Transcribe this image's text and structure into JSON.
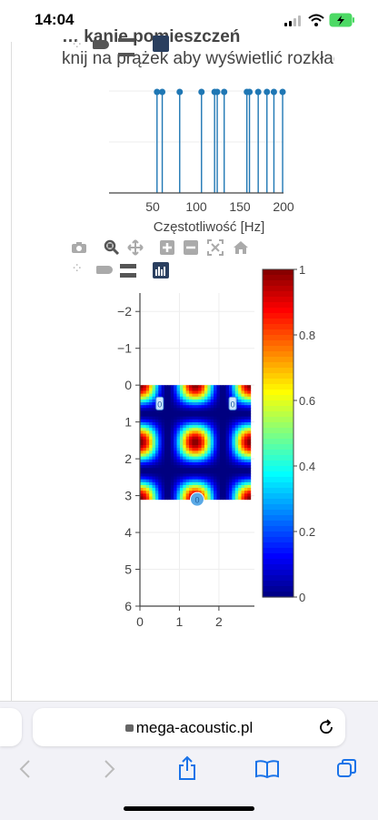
{
  "status_bar": {
    "time": "14:04"
  },
  "page": {
    "heading_partial": "… kanie pomieszczeń",
    "instruction": "knij na prążek aby wyświetlić rozkład",
    "freq_chart": {
      "xlabel": "Częstotliwość [Hz]"
    },
    "colors": {
      "stem": "#1f77b4",
      "dark_icon": "#2a3f5f"
    }
  },
  "chart_data": [
    {
      "type": "scatter",
      "mode": "stem",
      "title": "",
      "xlabel": "Częstotliwość [Hz]",
      "ylabel": "",
      "xlim": [
        0,
        200
      ],
      "xticks": [
        "50",
        "100",
        "150",
        "200"
      ],
      "points_x": [
        55,
        61,
        81,
        106,
        121,
        124,
        132,
        158,
        161,
        171,
        181,
        189,
        199
      ],
      "points_y": [
        1,
        1,
        1,
        1,
        1,
        1,
        1,
        1,
        1,
        1,
        1,
        1,
        1
      ]
    },
    {
      "type": "heatmap",
      "title": "",
      "xlim": [
        0,
        2.9
      ],
      "ylim": [
        6,
        -2.5
      ],
      "xticks": [
        "0",
        "1",
        "2"
      ],
      "yticks": [
        "−2",
        "−1",
        "0",
        "1",
        "2",
        "3",
        "4",
        "5",
        "6"
      ],
      "colorbar_ticks": [
        "1",
        "0.8",
        "0.6",
        "0.4",
        "0.2",
        "0"
      ],
      "colorscale": "jet",
      "room": {
        "width": 2.8,
        "depth": 3.1
      },
      "mode_pattern": {
        "nx": 2,
        "ny": 2
      },
      "point_labels": [
        "0",
        "0",
        "0"
      ]
    }
  ],
  "browser": {
    "url": "mega-acoustic.pl"
  },
  "icons": {
    "camera": "camera-icon",
    "zoom": "zoom-icon",
    "pan": "pan-icon",
    "zoom_in": "zoom-in-icon",
    "zoom_out": "zoom-out-icon",
    "autoscale": "autoscale-icon",
    "home": "home-icon",
    "spike": "spike-lines-icon",
    "hover_closest": "hover-closest-icon",
    "hover_compare": "hover-compare-icon",
    "plotly_logo": "plotly-logo-icon"
  }
}
